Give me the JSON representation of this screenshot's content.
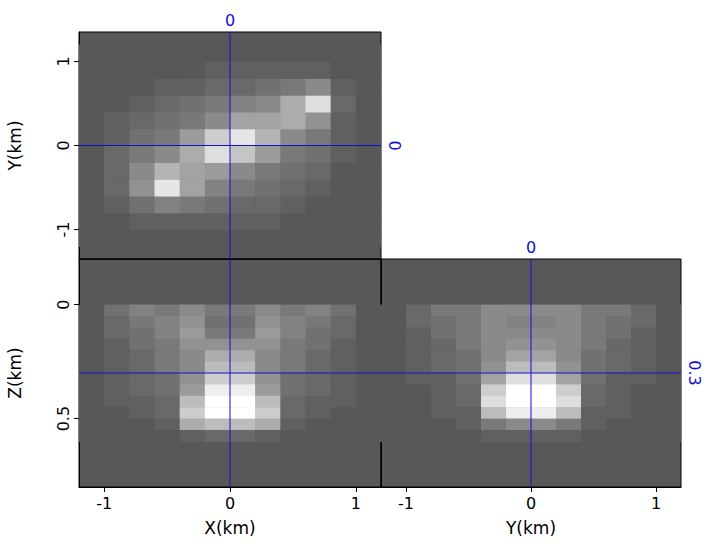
{
  "chart_data": [
    {
      "type": "heatmap",
      "ylabel": "Y(km)",
      "xlim": [
        -1.2,
        1.2
      ],
      "ylim": [
        -1.35,
        1.35
      ],
      "xticks": [
        -1,
        0,
        1
      ],
      "yticks": [
        -1,
        0,
        1
      ],
      "tick_labels": "y",
      "zlim": [
        0,
        1
      ],
      "crosshair": {
        "x": 0,
        "y": 0
      },
      "x": [
        -1.1,
        -0.9,
        -0.7,
        -0.5,
        -0.3,
        -0.1,
        0.1,
        0.3,
        0.5,
        0.7,
        0.9,
        1.1
      ],
      "y": [
        -1.1,
        -0.9,
        -0.7,
        -0.5,
        -0.3,
        -0.1,
        0.1,
        0.3,
        0.5,
        0.7,
        0.9,
        1.1
      ],
      "cells": [
        [
          0,
          0,
          0,
          0,
          0,
          0,
          0,
          0,
          0,
          0,
          0,
          0
        ],
        [
          0,
          0,
          0.05,
          0.05,
          0.05,
          0.05,
          0.05,
          0.05,
          0,
          0,
          0,
          0
        ],
        [
          0,
          0.05,
          0.15,
          0.25,
          0.2,
          0.15,
          0.1,
          0.1,
          0.05,
          0,
          0,
          0
        ],
        [
          0,
          0.1,
          0.35,
          0.85,
          0.45,
          0.25,
          0.2,
          0.15,
          0.1,
          0.05,
          0,
          0
        ],
        [
          0,
          0.1,
          0.3,
          0.55,
          0.45,
          0.4,
          0.3,
          0.2,
          0.15,
          0.1,
          0,
          0
        ],
        [
          0,
          0.1,
          0.2,
          0.3,
          0.5,
          0.8,
          0.65,
          0.4,
          0.2,
          0.15,
          0.05,
          0
        ],
        [
          0,
          0.05,
          0.15,
          0.2,
          0.4,
          0.7,
          0.85,
          0.55,
          0.3,
          0.2,
          0.05,
          0
        ],
        [
          0,
          0.05,
          0.1,
          0.15,
          0.2,
          0.3,
          0.45,
          0.45,
          0.5,
          0.35,
          0.05,
          0
        ],
        [
          0,
          0,
          0.05,
          0.1,
          0.15,
          0.2,
          0.25,
          0.3,
          0.5,
          0.8,
          0.1,
          0
        ],
        [
          0,
          0,
          0,
          0.05,
          0.05,
          0.1,
          0.1,
          0.15,
          0.2,
          0.3,
          0.05,
          0
        ],
        [
          0,
          0,
          0,
          0,
          0,
          0.05,
          0.05,
          0.05,
          0.05,
          0.05,
          0,
          0
        ],
        [
          0,
          0,
          0,
          0,
          0,
          0,
          0,
          0,
          0,
          0,
          0,
          0
        ]
      ]
    },
    {
      "type": "heatmap",
      "xlabel": "X(km)",
      "ylabel": "Z(km)",
      "xlim": [
        -1.2,
        1.2
      ],
      "ylim": [
        -0.2,
        0.8
      ],
      "xticks": [
        -1,
        0,
        1
      ],
      "yticks": [
        0,
        0.5
      ],
      "tick_labels": true,
      "zlim": [
        0,
        1
      ],
      "crosshair": {
        "x": 0,
        "y": 0.3
      },
      "x": [
        -1.1,
        -0.9,
        -0.7,
        -0.5,
        -0.3,
        -0.1,
        0.1,
        0.3,
        0.5,
        0.7,
        0.9,
        1.1
      ],
      "y": [
        0.025,
        0.075,
        0.125,
        0.175,
        0.225,
        0.275,
        0.325,
        0.375,
        0.425,
        0.475,
        0.525,
        0.575
      ],
      "cells": [
        [
          0,
          0.15,
          0.25,
          0.2,
          0.3,
          0.2,
          0.2,
          0.3,
          0.2,
          0.25,
          0.15,
          0
        ],
        [
          0,
          0.1,
          0.2,
          0.25,
          0.35,
          0.15,
          0.15,
          0.35,
          0.25,
          0.2,
          0.1,
          0
        ],
        [
          0,
          0.1,
          0.15,
          0.25,
          0.4,
          0.2,
          0.2,
          0.4,
          0.25,
          0.15,
          0.1,
          0
        ],
        [
          0,
          0.05,
          0.15,
          0.2,
          0.35,
          0.35,
          0.35,
          0.35,
          0.2,
          0.15,
          0.05,
          0
        ],
        [
          0,
          0.05,
          0.1,
          0.2,
          0.3,
          0.5,
          0.5,
          0.3,
          0.2,
          0.1,
          0.05,
          0
        ],
        [
          0,
          0.05,
          0.1,
          0.2,
          0.3,
          0.6,
          0.6,
          0.3,
          0.2,
          0.1,
          0.05,
          0
        ],
        [
          0,
          0.05,
          0.1,
          0.15,
          0.35,
          0.7,
          0.7,
          0.35,
          0.15,
          0.1,
          0.05,
          0
        ],
        [
          0,
          0.05,
          0.1,
          0.15,
          0.4,
          0.9,
          0.9,
          0.4,
          0.15,
          0.1,
          0.05,
          0
        ],
        [
          0,
          0.05,
          0.05,
          0.1,
          0.6,
          1,
          1,
          0.6,
          0.1,
          0.05,
          0.05,
          0
        ],
        [
          0,
          0,
          0.05,
          0.1,
          0.7,
          1,
          1,
          0.7,
          0.1,
          0.05,
          0,
          0
        ],
        [
          0,
          0,
          0,
          0.05,
          0.5,
          0.6,
          0.6,
          0.5,
          0.05,
          0,
          0,
          0
        ],
        [
          0,
          0,
          0,
          0,
          0.05,
          0.1,
          0.1,
          0.05,
          0,
          0,
          0,
          0
        ]
      ]
    },
    {
      "type": "heatmap",
      "xlabel": "Y(km)",
      "xlim": [
        -1.2,
        1.2
      ],
      "ylim": [
        -0.2,
        0.8
      ],
      "xticks": [
        -1,
        0,
        1
      ],
      "yticks": [
        0,
        0.5
      ],
      "tick_labels": "x",
      "zlim": [
        0,
        1
      ],
      "crosshair": {
        "x": 0,
        "y": 0.3
      },
      "x": [
        -1.1,
        -0.9,
        -0.7,
        -0.5,
        -0.3,
        -0.1,
        0.1,
        0.3,
        0.5,
        0.7,
        0.9,
        1.1
      ],
      "y": [
        0.025,
        0.075,
        0.125,
        0.175,
        0.225,
        0.275,
        0.325,
        0.375,
        0.425,
        0.475,
        0.525,
        0.575
      ],
      "cells": [
        [
          0,
          0.1,
          0.2,
          0.2,
          0.3,
          0.3,
          0.3,
          0.3,
          0.2,
          0.2,
          0.1,
          0
        ],
        [
          0,
          0.1,
          0.15,
          0.2,
          0.3,
          0.25,
          0.25,
          0.3,
          0.2,
          0.15,
          0.1,
          0
        ],
        [
          0,
          0.05,
          0.15,
          0.2,
          0.3,
          0.3,
          0.3,
          0.3,
          0.2,
          0.15,
          0.05,
          0
        ],
        [
          0,
          0.05,
          0.1,
          0.2,
          0.3,
          0.35,
          0.35,
          0.3,
          0.2,
          0.1,
          0.05,
          0
        ],
        [
          0,
          0.05,
          0.1,
          0.15,
          0.3,
          0.45,
          0.45,
          0.3,
          0.15,
          0.1,
          0.05,
          0
        ],
        [
          0,
          0.05,
          0.1,
          0.15,
          0.35,
          0.6,
          0.6,
          0.35,
          0.15,
          0.1,
          0.05,
          0
        ],
        [
          0,
          0.05,
          0.05,
          0.15,
          0.45,
          0.8,
          0.8,
          0.45,
          0.15,
          0.05,
          0.05,
          0
        ],
        [
          0,
          0,
          0.05,
          0.1,
          0.7,
          1,
          1,
          0.7,
          0.1,
          0.05,
          0,
          0
        ],
        [
          0,
          0,
          0.05,
          0.1,
          0.8,
          1,
          1,
          0.8,
          0.1,
          0.05,
          0,
          0
        ],
        [
          0,
          0,
          0.05,
          0.05,
          0.6,
          0.9,
          0.9,
          0.6,
          0.05,
          0.05,
          0,
          0
        ],
        [
          0,
          0,
          0,
          0.05,
          0.2,
          0.3,
          0.3,
          0.2,
          0.05,
          0,
          0,
          0
        ],
        [
          0,
          0,
          0,
          0,
          0.05,
          0.05,
          0.05,
          0.05,
          0,
          0,
          0,
          0
        ]
      ]
    }
  ]
}
